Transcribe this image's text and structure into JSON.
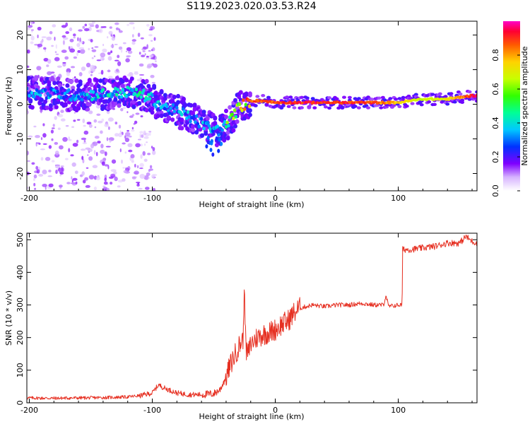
{
  "title": "S119.2023.020.03.53.R24",
  "chart_data": [
    {
      "type": "heatmap",
      "xlabel": "Height of straight line (km)",
      "ylabel": "Frequency (Hz)",
      "xlim": [
        -202,
        164
      ],
      "ylim": [
        -25,
        24
      ],
      "xticks": [
        -200,
        -100,
        0,
        100
      ],
      "yticks": [
        -20,
        -10,
        0,
        10,
        20
      ],
      "ridge": {
        "x": [
          -200,
          -180,
          -160,
          -140,
          -120,
          -110,
          -100,
          -90,
          -80,
          -70,
          -60,
          -50,
          -45,
          -40,
          -35,
          -30,
          -25,
          -20,
          -10,
          0,
          20,
          50,
          80,
          100,
          120,
          140,
          160
        ],
        "y": [
          3.5,
          3,
          2.5,
          3,
          3.5,
          3,
          1.5,
          -1,
          -2,
          -3.5,
          -5.5,
          -7.5,
          -7.5,
          -6,
          -4,
          -1,
          0,
          1,
          1,
          0.5,
          0.5,
          0.5,
          0.5,
          0.5,
          1.5,
          1.5,
          2.5
        ],
        "amplitude": [
          0.35,
          0.35,
          0.35,
          0.4,
          0.45,
          0.45,
          0.4,
          0.35,
          0.35,
          0.35,
          0.35,
          0.4,
          0.4,
          0.55,
          0.65,
          0.75,
          0.8,
          0.9,
          0.9,
          0.9,
          0.95,
          0.95,
          0.9,
          0.8,
          0.7,
          0.75,
          0.95
        ]
      }
    },
    {
      "type": "line",
      "xlabel": "Height of straight line (km)",
      "ylabel": "SNR (10 * v/v)",
      "xlim": [
        -202,
        164
      ],
      "ylim": [
        0,
        520
      ],
      "xticks": [
        -200,
        -100,
        0,
        100
      ],
      "yticks": [
        0,
        100,
        200,
        300,
        400,
        500
      ],
      "color": "#e63022",
      "series": [
        {
          "x": [
            -202,
            -180,
            -160,
            -140,
            -120,
            -110,
            -100,
            -95,
            -90,
            -80,
            -70,
            -60,
            -50,
            -45,
            -40,
            -35,
            -30,
            -26,
            -25,
            -24,
            -22,
            -20,
            -15,
            -10,
            -5,
            0,
            5,
            10,
            15,
            20,
            30,
            40,
            50,
            60,
            70,
            80,
            88,
            90,
            92,
            100,
            103,
            104,
            110,
            120,
            130,
            140,
            150,
            155,
            160,
            164
          ],
          "y": [
            15,
            14,
            15,
            16,
            18,
            22,
            30,
            55,
            45,
            30,
            25,
            25,
            28,
            40,
            80,
            130,
            170,
            200,
            365,
            160,
            150,
            180,
            200,
            210,
            215,
            225,
            240,
            250,
            275,
            290,
            300,
            295,
            300,
            300,
            305,
            300,
            300,
            330,
            295,
            300,
            300,
            470,
            470,
            475,
            480,
            490,
            490,
            510,
            495,
            490
          ]
        }
      ]
    }
  ],
  "colorbar": {
    "label": "Normalized spectral amplitude",
    "ticks": [
      "0.0",
      "0.2",
      "0.4",
      "0.6",
      "0.8"
    ]
  },
  "colors": {
    "line": "#e63022",
    "axis": "#000000",
    "grid": "#dddddd"
  }
}
